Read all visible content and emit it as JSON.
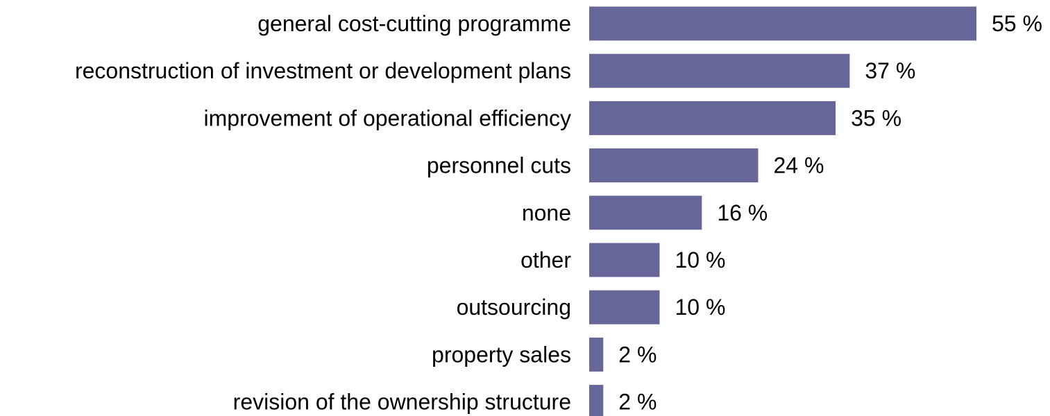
{
  "chart_data": {
    "type": "bar",
    "orientation": "horizontal",
    "categories": [
      "general cost-cutting programme",
      "reconstruction of investment or development plans",
      "improvement of operational efficiency",
      "personnel cuts",
      "none",
      "other",
      "outsourcing",
      "property sales",
      "revision of the ownership structure"
    ],
    "values": [
      55,
      37,
      35,
      24,
      16,
      10,
      10,
      2,
      2
    ],
    "value_labels": [
      "55 %",
      "37 %",
      "35 %",
      "24 %",
      "16 %",
      "10 %",
      "10 %",
      "2 %",
      "2 %"
    ],
    "unit": "%",
    "title": "",
    "xlabel": "",
    "ylabel": "",
    "xlim": [
      0,
      55
    ],
    "grid": false,
    "legend": "none",
    "colors": {
      "bar": "#676699",
      "text": "#000000",
      "background": "#ffffff"
    }
  }
}
